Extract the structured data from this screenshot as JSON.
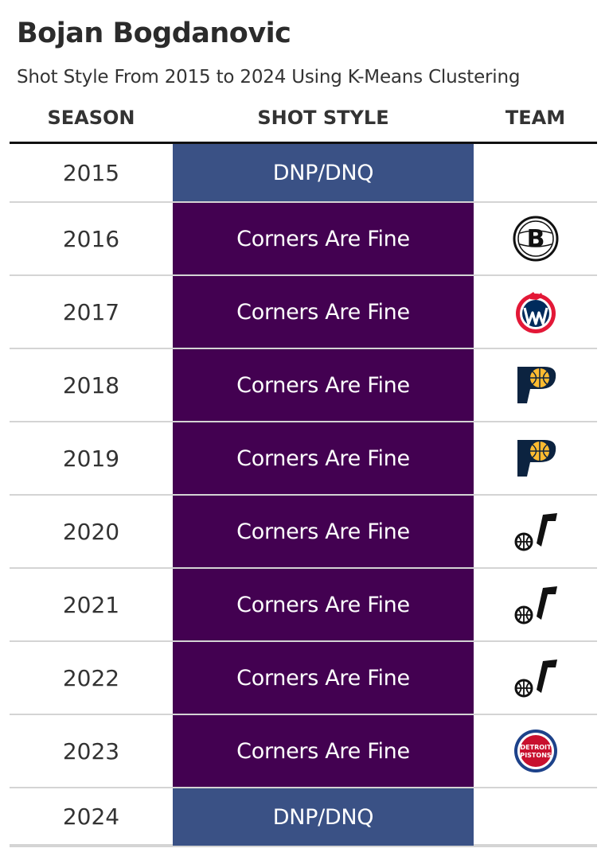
{
  "title": "Bojan Bogdanovic",
  "subtitle": "Shot Style From 2015 to 2024 Using K-Means Clustering",
  "columns": {
    "season": "SEASON",
    "shot_style": "SHOT STYLE",
    "team": "TEAM"
  },
  "colors": {
    "dnp": "#3a5185",
    "corners_are_fine": "#430151",
    "header_rule": "#111111",
    "row_rule": "#d4d4d4"
  },
  "rows": [
    {
      "season": "2015",
      "shot_style": "DNP/DNQ",
      "style_class": "dnp",
      "team_logo": ""
    },
    {
      "season": "2016",
      "shot_style": "Corners Are Fine",
      "style_class": "corners",
      "team_logo": "nets-logo-icon"
    },
    {
      "season": "2017",
      "shot_style": "Corners Are Fine",
      "style_class": "corners",
      "team_logo": "wizards-logo-icon"
    },
    {
      "season": "2018",
      "shot_style": "Corners Are Fine",
      "style_class": "corners",
      "team_logo": "pacers-logo-icon"
    },
    {
      "season": "2019",
      "shot_style": "Corners Are Fine",
      "style_class": "corners",
      "team_logo": "pacers-logo-icon"
    },
    {
      "season": "2020",
      "shot_style": "Corners Are Fine",
      "style_class": "corners",
      "team_logo": "jazz-logo-icon"
    },
    {
      "season": "2021",
      "shot_style": "Corners Are Fine",
      "style_class": "corners",
      "team_logo": "jazz-logo-icon"
    },
    {
      "season": "2022",
      "shot_style": "Corners Are Fine",
      "style_class": "corners",
      "team_logo": "jazz-logo-icon"
    },
    {
      "season": "2023",
      "shot_style": "Corners Are Fine",
      "style_class": "corners",
      "team_logo": "pistons-logo-icon"
    },
    {
      "season": "2024",
      "shot_style": "DNP/DNQ",
      "style_class": "dnp",
      "team_logo": ""
    }
  ],
  "logo_text": {
    "nets": "B",
    "pistons_top": "DETROIT",
    "pistons_bottom": "PISTONS"
  }
}
